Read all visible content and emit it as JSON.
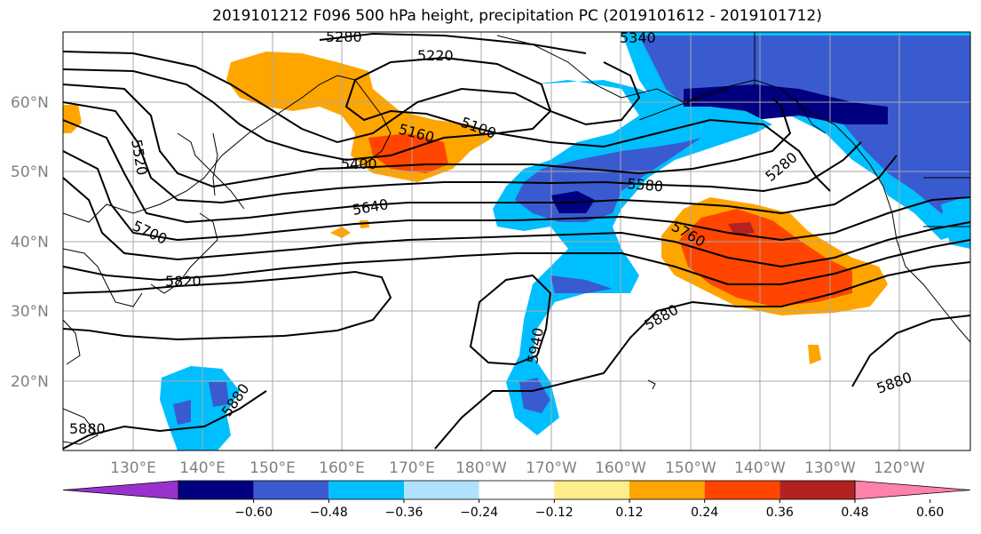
{
  "title": "2019101212 F096 500 hPa height, precipitation PC (2019101612 - 2019101712)",
  "map": {
    "lat_labels": [
      "60°N",
      "50°N",
      "40°N",
      "30°N",
      "20°N"
    ],
    "lon_labels": [
      "130°E",
      "140°E",
      "150°E",
      "160°E",
      "170°E",
      "180°W",
      "170°W",
      "160°W",
      "150°W",
      "140°W",
      "130°W",
      "120°W"
    ],
    "height_contour_labels": [
      "5220",
      "5280",
      "5340",
      "5100",
      "5160",
      "5400",
      "5520",
      "5580",
      "5640",
      "5700",
      "5760",
      "5820",
      "5880",
      "5940",
      "5880",
      "5880",
      "5880",
      "5280"
    ],
    "contour_interval": 60,
    "gridlines": true
  },
  "colorbar": {
    "tick_labels": [
      "−0.60",
      "−0.48",
      "−0.36",
      "−0.24",
      "−0.12",
      "0.12",
      "0.24",
      "0.36",
      "0.48",
      "0.60"
    ],
    "bins": [
      {
        "color": "#9932cc"
      },
      {
        "color": "#000080"
      },
      {
        "color": "#3a5bd0"
      },
      {
        "color": "#00bfff"
      },
      {
        "color": "#b0e2ff"
      },
      {
        "color": "#ffffff"
      },
      {
        "color": "#ffec8b"
      },
      {
        "color": "#ffa500"
      },
      {
        "color": "#ff4500"
      },
      {
        "color": "#b22222"
      },
      {
        "color": "#ff82ab"
      }
    ]
  }
}
